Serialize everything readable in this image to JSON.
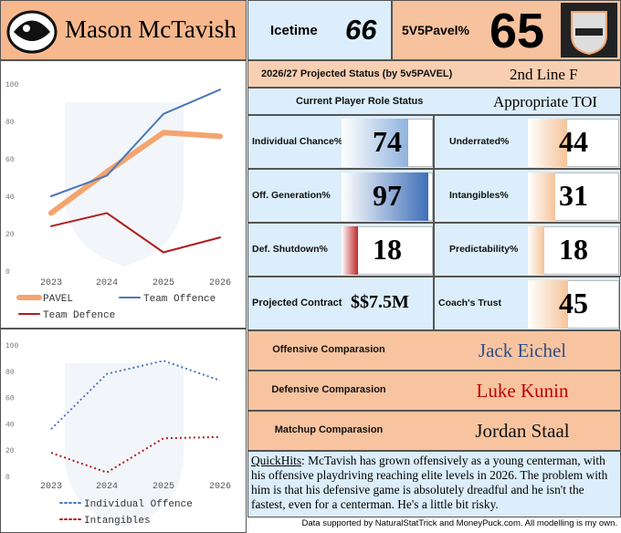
{
  "header": {
    "name": "Mason McTavish",
    "icetime_label": "Icetime",
    "icetime": 66,
    "pavel_label": "5V5Pavel%",
    "pavel": 65
  },
  "status": [
    {
      "label": "2026/27 Projected Status (by 5v5PAVEL)",
      "value": "2nd Line F"
    },
    {
      "label": "Current Player Role Status",
      "value": "Appropriate TOI"
    }
  ],
  "stats": [
    {
      "label": "Individual Chance%",
      "value": 74,
      "color": "#8fb2de"
    },
    {
      "label": "Underrated%",
      "value": 44,
      "color": "#f5c49a"
    },
    {
      "label": "Off. Generation%",
      "value": 97,
      "color": "#3f6fb8"
    },
    {
      "label": "Intangibles%",
      "value": 31,
      "color": "#f5c49a"
    },
    {
      "label": "Def. Shutdown%",
      "value": 18,
      "color": "#c0282a"
    },
    {
      "label": "Predictability%",
      "value": 18,
      "color": "#f5c49a"
    },
    {
      "label": "Coach's Trust",
      "value": 45,
      "color": "#f5c49a"
    }
  ],
  "contract": {
    "label": "Projected Contract",
    "value": "$$7.5M"
  },
  "comparisons": [
    {
      "label": "Offensive Comparasion",
      "player": "Jack Eichel",
      "color": "#2e4f86"
    },
    {
      "label": "Defensive Comparasion",
      "player": "Luke Kunin",
      "color": "#c00000"
    },
    {
      "label": "Matchup Comparasion",
      "player": "Jordan Staal",
      "color": "#111111"
    }
  ],
  "quick_hits": {
    "label": "QuickHits",
    "text": ": McTavish has grown offensively as a young centerman, with his offensive playdriving reaching elite levels in 2026. The problem with him is that his defensive game is absolutely dreadful and he isn't the fastest, even for a centerman. He's a little bit risky."
  },
  "footer": "Data supported by NaturalStatTrick and MoneyPuck.com. All modelling is my own.",
  "chart_data": [
    {
      "type": "line",
      "categories": [
        "2023",
        "2024",
        "2025",
        "2026"
      ],
      "ylim": [
        0,
        100
      ],
      "yticks": [
        0,
        20,
        40,
        60,
        80,
        100
      ],
      "series": [
        {
          "name": "PAVEL",
          "color": "#f4a46e",
          "linewidth": 6,
          "line_style": "solid",
          "values": [
            31,
            53,
            74,
            72
          ]
        },
        {
          "name": "Team Offence",
          "color": "#4a78b8",
          "linewidth": 2,
          "line_style": "solid",
          "values": [
            40,
            51,
            84,
            97
          ]
        },
        {
          "name": "Team Defence",
          "color": "#b01c1c",
          "linewidth": 2,
          "line_style": "solid",
          "values": [
            24,
            31,
            10,
            18
          ]
        }
      ]
    },
    {
      "type": "line",
      "categories": [
        "2023",
        "2024",
        "2025",
        "2026"
      ],
      "ylim": [
        0,
        100
      ],
      "yticks": [
        0,
        20,
        40,
        60,
        80,
        100
      ],
      "series": [
        {
          "name": "Individual Offence",
          "color": "#4a78c8",
          "linewidth": 2,
          "line_style": "dotted",
          "values": [
            36,
            78,
            88,
            73
          ]
        },
        {
          "name": "Intangibles",
          "color": "#b01c1c",
          "linewidth": 2,
          "line_style": "dotted",
          "values": [
            18,
            3,
            29,
            30
          ]
        }
      ]
    }
  ]
}
